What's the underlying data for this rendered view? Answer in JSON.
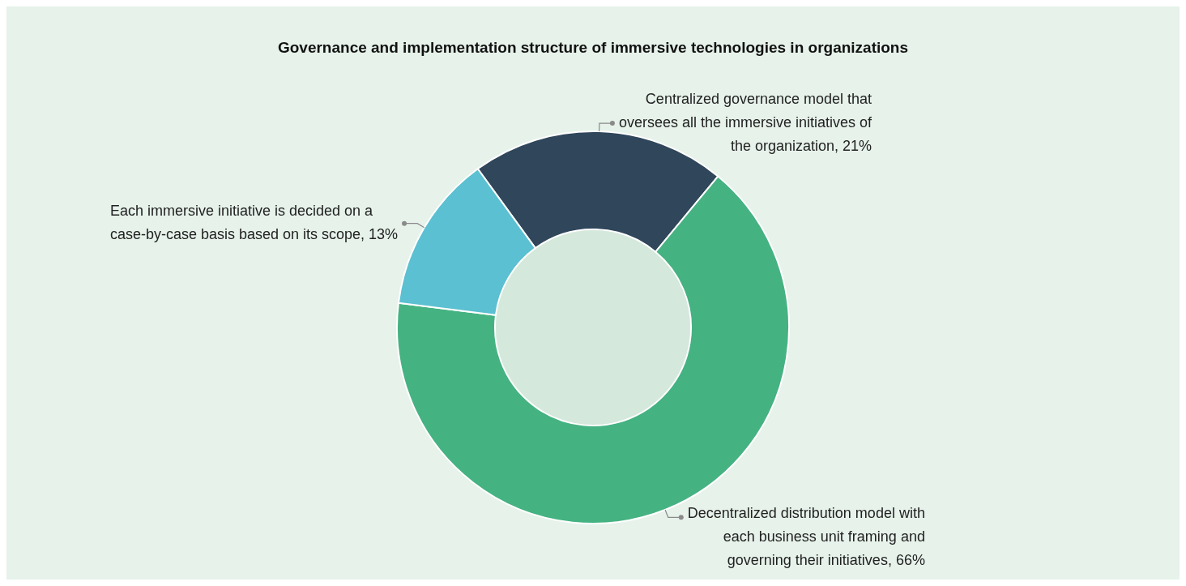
{
  "chart_data": {
    "type": "donut",
    "title": "Governance and implementation structure of immersive technologies in organizations",
    "categories": [
      "Centralized governance model that oversees all the immersive initiatives of the organization",
      "Decentralized distribution model with each business unit framing and governing their initiatives",
      "Each immersive initiative is decided on a case-by-case basis based on its scope"
    ],
    "values": [
      21,
      66,
      13
    ],
    "value_labels": [
      ", 21%",
      ", 66%",
      ", 13%"
    ],
    "colors": [
      "#2f465b",
      "#45b282",
      "#5bc0d1"
    ],
    "legend": false
  }
}
